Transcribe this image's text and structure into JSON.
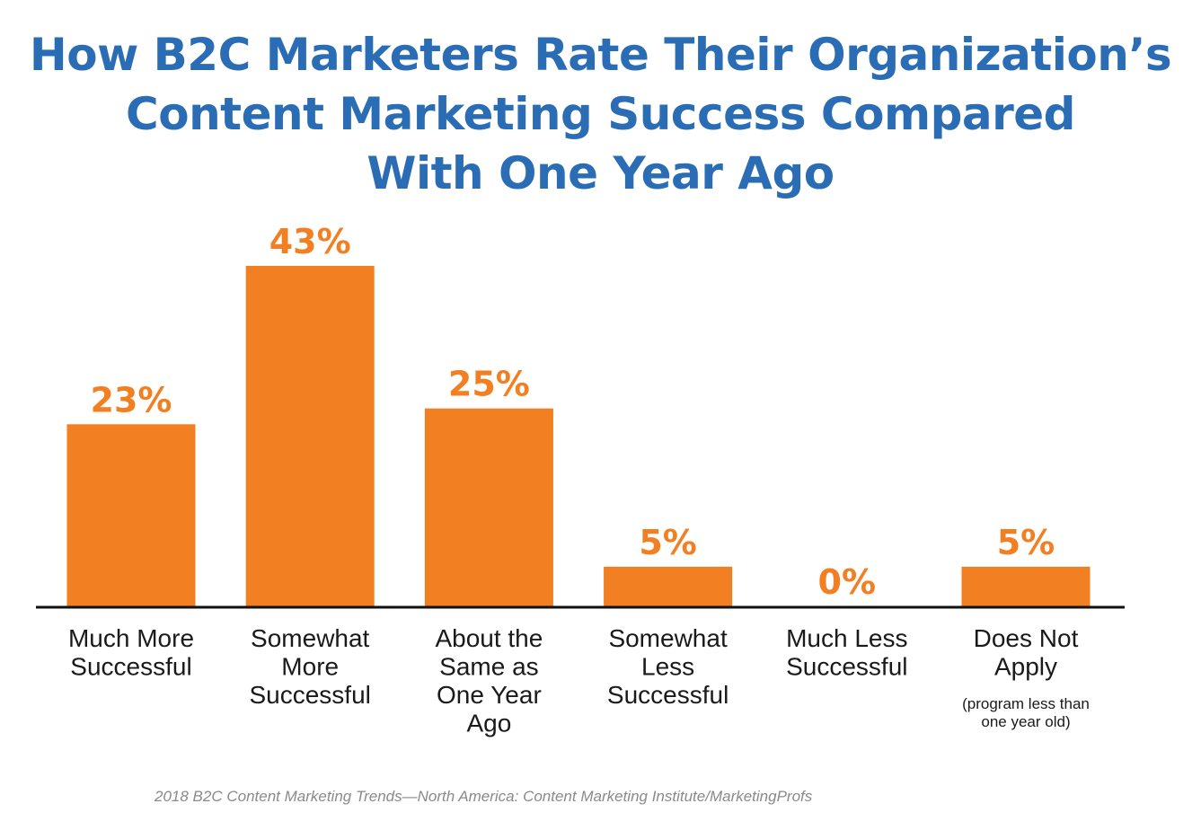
{
  "chart_data": {
    "type": "bar",
    "title_lines": [
      "How B2C Marketers Rate Their Organization’s",
      "Content Marketing Success Compared",
      "With One Year Ago"
    ],
    "categories": [
      "Much More Successful",
      "Somewhat More Successful",
      "About the Same as One Year Ago",
      "Somewhat Less Successful",
      "Much Less Successful",
      "Does Not Apply"
    ],
    "category_label_lines": [
      [
        "Much More",
        "Successful"
      ],
      [
        "Somewhat",
        "More",
        "Successful"
      ],
      [
        "About the",
        "Same as",
        "One Year",
        "Ago"
      ],
      [
        "Somewhat",
        "Less",
        "Successful"
      ],
      [
        "Much Less",
        "Successful"
      ],
      [
        "Does Not",
        "Apply"
      ]
    ],
    "category_notes": [
      [],
      [],
      [],
      [],
      [],
      [
        "(program less than",
        "one year old)"
      ]
    ],
    "values": [
      23,
      43,
      25,
      5,
      0,
      5
    ],
    "value_labels": [
      "23%",
      "43%",
      "25%",
      "5%",
      "0%",
      "5%"
    ],
    "unit": "%",
    "xlabel": "",
    "ylabel": "",
    "ylim": [
      0,
      43
    ],
    "grid": false,
    "legend": "none",
    "bar_color": "#f27f22",
    "title_color": "#2a6db5",
    "source": "2018 B2C Content Marketing Trends—North America: Content Marketing Institute/MarketingProfs"
  }
}
